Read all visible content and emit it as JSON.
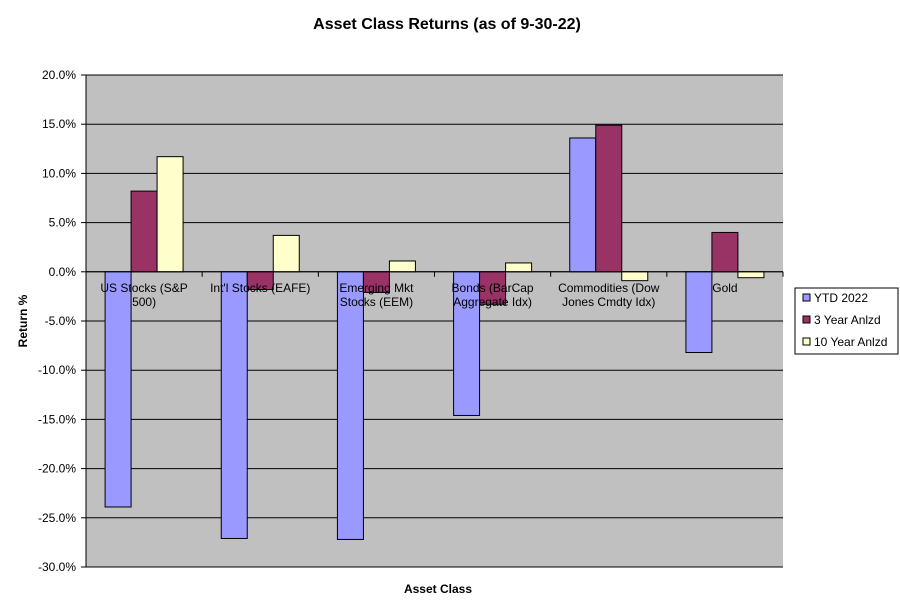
{
  "chart_data": {
    "type": "bar",
    "title": "Asset Class Returns (as of 9-30-22)",
    "xlabel": "Asset  Class",
    "ylabel": "Return %",
    "ylim": [
      -30,
      20
    ],
    "yticks": [
      20,
      15,
      10,
      5,
      0,
      -5,
      -10,
      -15,
      -20,
      -25,
      -30
    ],
    "ytick_format": "percent_1dp",
    "grid": true,
    "legend_position": "right",
    "categories": [
      [
        "US Stocks (S&P",
        "500)"
      ],
      [
        "Int'l Stocks (EAFE)"
      ],
      [
        "Emerging Mkt",
        "Stocks (EEM)"
      ],
      [
        "Bonds (BarCap",
        "Aggregate Idx)"
      ],
      [
        "Commodities (Dow",
        "Jones Cmdty Idx)"
      ],
      [
        "Gold"
      ]
    ],
    "series": [
      {
        "name": "YTD 2022",
        "color": "#9999FF",
        "values": [
          -23.9,
          -27.1,
          -27.2,
          -14.6,
          13.6,
          -8.2
        ]
      },
      {
        "name": "3 Year Anlzd",
        "color": "#993366",
        "values": [
          8.2,
          -1.8,
          -2.1,
          -3.3,
          14.9,
          4.0
        ]
      },
      {
        "name": "10 Year Anlzd",
        "color": "#FFFFCC",
        "values": [
          11.7,
          3.7,
          1.1,
          0.9,
          -0.9,
          -0.6
        ]
      }
    ],
    "colors": {
      "plot_background": "#C0C0C0",
      "gridline": "#000000"
    }
  }
}
